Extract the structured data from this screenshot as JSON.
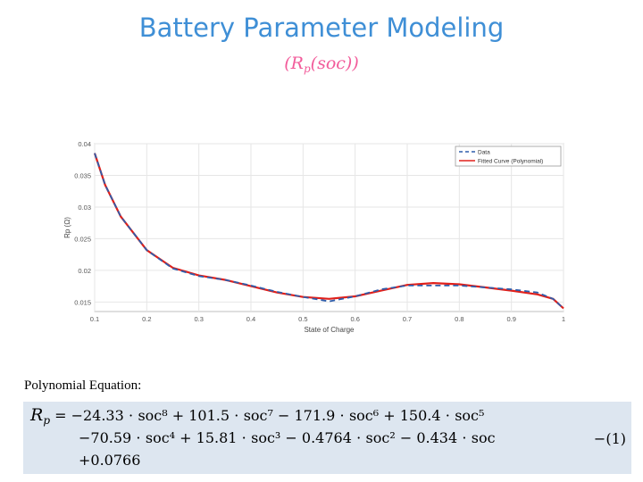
{
  "slide": {
    "title": "Battery Parameter Modeling",
    "subtitle_open": "(",
    "subtitle_R": "R",
    "subtitle_p": "p",
    "subtitle_rest": "(soc))"
  },
  "chart_data": {
    "type": "line",
    "xlabel": "State of Charge",
    "ylabel": "Rp (Ω)",
    "xlim": [
      0.1,
      1.0
    ],
    "ylim": [
      0.0135,
      0.04
    ],
    "xticks": [
      "0.1",
      "0.2",
      "0.3",
      "0.4",
      "0.5",
      "0.6",
      "0.7",
      "0.8",
      "0.9",
      "1"
    ],
    "yticks": [
      "0.04",
      "0.035",
      "0.03",
      "0.025",
      "0.02",
      "0.015"
    ],
    "grid": true,
    "legend_position": "top-right",
    "series": [
      {
        "name": "Data",
        "style": "dashed",
        "color": "#2e5dab",
        "x": [
          0.1,
          0.12,
          0.15,
          0.2,
          0.25,
          0.3,
          0.35,
          0.4,
          0.45,
          0.5,
          0.55,
          0.6,
          0.65,
          0.7,
          0.75,
          0.8,
          0.85,
          0.9,
          0.95,
          0.98,
          1.0
        ],
        "y": [
          0.0385,
          0.0335,
          0.0285,
          0.0232,
          0.0203,
          0.0191,
          0.0185,
          0.0176,
          0.0166,
          0.0158,
          0.0151,
          0.0159,
          0.017,
          0.0176,
          0.0176,
          0.0176,
          0.0173,
          0.017,
          0.0165,
          0.0155,
          0.014
        ]
      },
      {
        "name": "Fitted Curve (Polynomial)",
        "style": "solid",
        "color": "#e0201b",
        "x": [
          0.1,
          0.12,
          0.15,
          0.2,
          0.25,
          0.3,
          0.35,
          0.4,
          0.45,
          0.5,
          0.55,
          0.6,
          0.65,
          0.7,
          0.75,
          0.8,
          0.85,
          0.9,
          0.95,
          0.98,
          1.0
        ],
        "y": [
          0.0385,
          0.0335,
          0.0285,
          0.0232,
          0.0204,
          0.0192,
          0.0185,
          0.0175,
          0.0165,
          0.0158,
          0.0155,
          0.0159,
          0.0168,
          0.0177,
          0.018,
          0.0178,
          0.0173,
          0.0168,
          0.0162,
          0.0155,
          0.014
        ]
      }
    ]
  },
  "equation": {
    "label": "Polynomial Equation:",
    "lhs_R": "R",
    "lhs_p": "p",
    "line1": " = −24.33 ⋅ soc⁸ + 101.5 ⋅ soc⁷ − 171.9 ⋅ soc⁶ + 150.4 ⋅ soc⁵",
    "line2": "−70.59 ⋅ soc⁴ + 15.81 ⋅ soc³ − 0.4764 ⋅ soc² − 0.434 ⋅ soc",
    "line3": "+0.0766",
    "number": "−(1)"
  }
}
